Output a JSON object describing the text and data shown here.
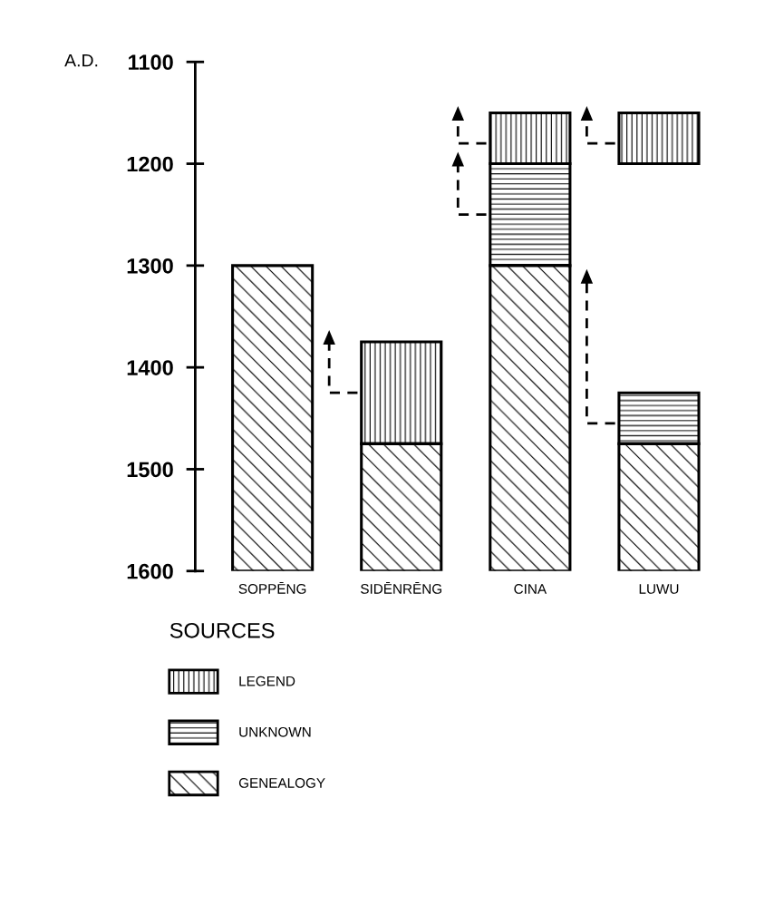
{
  "chart_data": {
    "type": "bar",
    "ylabel": "A.D.",
    "categories": [
      "SOPPĒNG",
      "SIDĒNRĒNG",
      "CINA",
      "LUWU"
    ],
    "ylim": [
      1600,
      1100
    ],
    "yticks": [
      1100,
      1200,
      1300,
      1400,
      1500,
      1600
    ],
    "legend": "bottom",
    "legend_title": "SOURCES",
    "grid": false,
    "series": [
      {
        "name": "LEGEND",
        "color": "#000000",
        "base": [
          null,
          1375,
          1150,
          1150
        ],
        "values": [
          null,
          100,
          50,
          50
        ]
      },
      {
        "name": "UNKNOWN",
        "color": "#000000",
        "base": [
          null,
          null,
          1200,
          1425
        ],
        "values": [
          null,
          null,
          100,
          50
        ]
      },
      {
        "name": "GENEALOGY",
        "color": "#000000",
        "base": [
          1300,
          1475,
          1300,
          1475
        ],
        "values": [
          300,
          125,
          300,
          125
        ]
      }
    ]
  }
}
